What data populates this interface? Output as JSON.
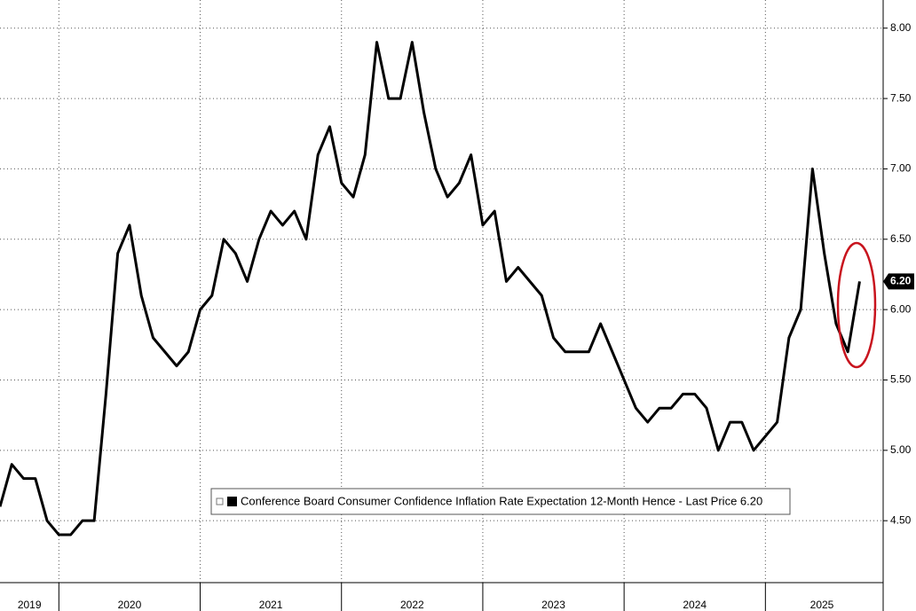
{
  "chart_data": {
    "type": "line",
    "legend": "Conference Board Consumer Confidence Inflation Rate Expectation 12-Month Hence - Last Price 6.20",
    "last_price_label": "6.20",
    "last_price": 6.2,
    "categories": [
      null,
      null,
      null,
      null,
      null,
      null,
      null,
      null,
      null,
      null,
      null,
      null,
      null,
      null,
      null,
      null,
      null,
      null,
      null,
      null,
      null,
      null,
      null,
      null,
      null,
      null,
      null,
      null,
      null,
      null,
      null,
      null,
      null,
      null,
      null,
      null,
      null,
      null,
      null,
      null,
      null,
      null,
      null,
      null,
      null,
      null,
      null,
      null,
      null,
      null,
      null,
      null,
      null,
      null,
      null,
      null,
      null,
      null,
      null,
      null,
      null,
      null,
      null,
      null,
      null,
      null,
      null,
      null,
      null,
      null,
      null,
      null,
      null,
      null
    ],
    "series": [
      {
        "name": "Conference Board Consumer Confidence Inflation Rate Expectation 12-Month Hence",
        "color": "#000000",
        "values": [
          4.6,
          4.9,
          4.8,
          4.8,
          4.5,
          4.4,
          4.4,
          4.5,
          4.5,
          5.4,
          6.4,
          6.6,
          6.1,
          5.8,
          5.7,
          5.6,
          5.7,
          6.0,
          6.1,
          6.5,
          6.4,
          6.2,
          6.5,
          6.7,
          6.6,
          6.7,
          6.5,
          7.1,
          7.3,
          6.9,
          6.8,
          7.1,
          7.9,
          7.5,
          7.5,
          7.9,
          7.4,
          7.0,
          6.8,
          6.9,
          7.1,
          6.6,
          6.7,
          6.2,
          6.3,
          6.2,
          6.1,
          5.8,
          5.7,
          5.7,
          5.7,
          5.9,
          5.7,
          5.5,
          5.3,
          5.2,
          5.3,
          5.3,
          5.4,
          5.4,
          5.3,
          5.0,
          5.2,
          5.2,
          5.0,
          5.1,
          5.2,
          5.8,
          6.0,
          7.0,
          6.4,
          5.9,
          5.7,
          6.2
        ]
      }
    ],
    "xlim": [
      0,
      75
    ],
    "xticks": [
      5,
      17,
      29,
      41,
      53,
      65
    ],
    "xtick_labels": [
      {
        "value": 2.5,
        "label": "2019"
      },
      {
        "value": 11,
        "label": "2020"
      },
      {
        "value": 23,
        "label": "2021"
      },
      {
        "value": 35,
        "label": "2022"
      },
      {
        "value": 47,
        "label": "2023"
      },
      {
        "value": 59,
        "label": "2024"
      },
      {
        "value": 69.8,
        "label": "2025"
      }
    ],
    "ylim": [
      4.06,
      8.2
    ],
    "yticks": [
      {
        "value": 4.5,
        "label": "4.50"
      },
      {
        "value": 5,
        "label": "5.00"
      },
      {
        "value": 5.5,
        "label": "5.50"
      },
      {
        "value": 6,
        "label": "6.00"
      },
      {
        "value": 6.5,
        "label": "6.50"
      },
      {
        "value": 7,
        "label": "7.00"
      },
      {
        "value": 7.5,
        "label": "7.50"
      },
      {
        "value": 8,
        "label": "8.00"
      }
    ],
    "grid": true
  }
}
